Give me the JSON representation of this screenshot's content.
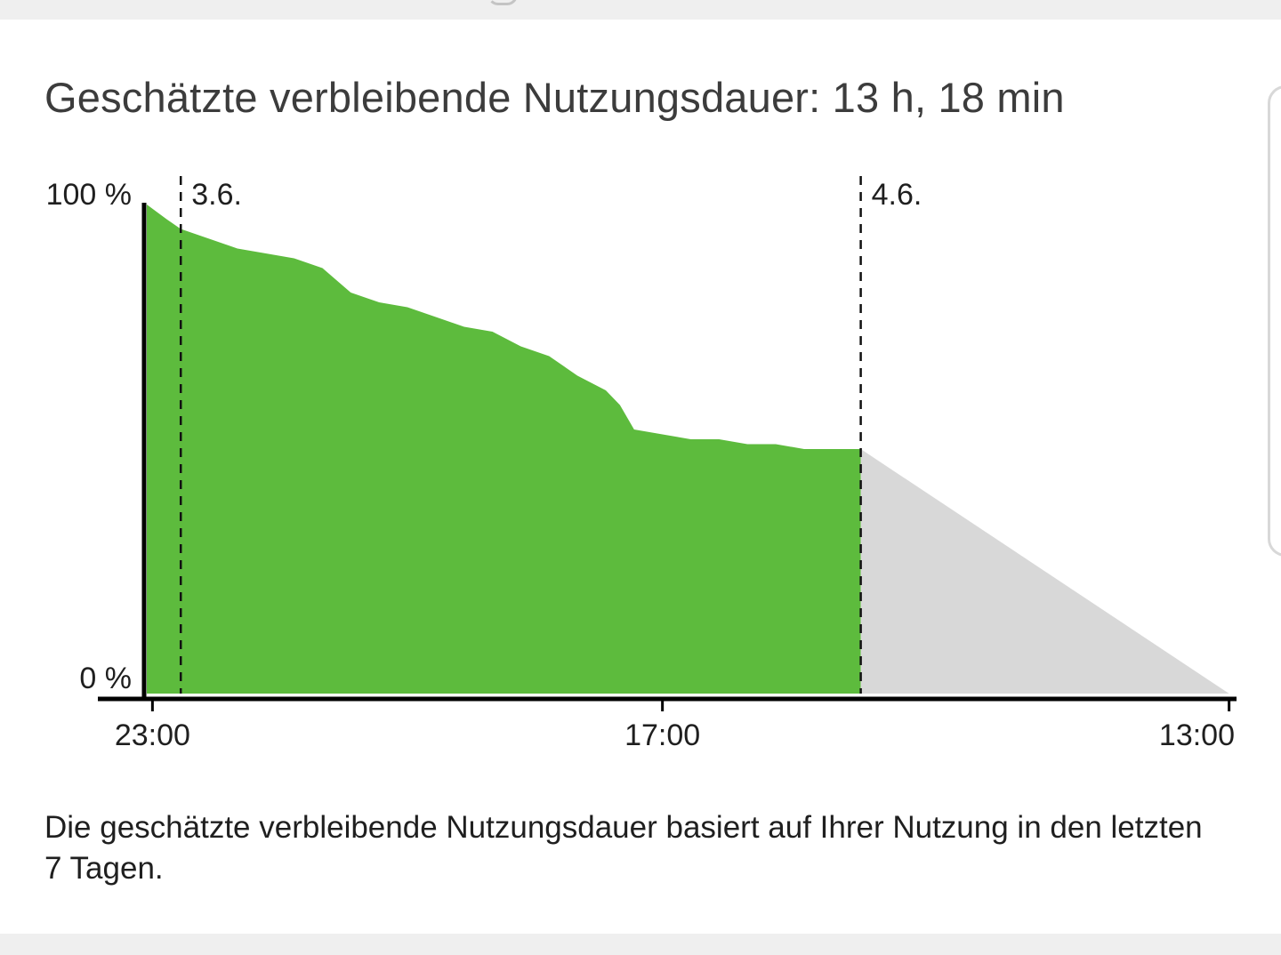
{
  "estimate": {
    "title": "Geschätzte verbleibende Nutzungsdauer: 13 h, 18 min"
  },
  "footnote": "Die geschätzte verbleibende Nutzungsdauer basiert auf Ihrer Nutzung in den letzten 7 Tagen.",
  "colors": {
    "usage_fill": "#5dbb3d",
    "prediction_fill": "#d8d8d8",
    "axis": "#000000",
    "text": "#1f1f1f"
  },
  "chart_data": {
    "type": "area",
    "x_unit": "hours elapsed since 23:00",
    "ylabel": "",
    "xlabel": "",
    "ylim": [
      0,
      100
    ],
    "xlim": [
      -0.2,
      38.2
    ],
    "y_ticks": [
      "0 %",
      "100 %"
    ],
    "x_ticks": [
      {
        "label": "23:00",
        "x": 0
      },
      {
        "label": "17:00",
        "x": 18
      },
      {
        "label": "13:00",
        "x": 38
      }
    ],
    "day_markers": [
      {
        "label": "3.6.",
        "x": 1
      },
      {
        "label": "4.6.",
        "x": 25
      }
    ],
    "series": [
      {
        "kind": "usage",
        "x": [
          -0.2,
          0.5,
          1.0,
          2.0,
          3.0,
          4.0,
          5.0,
          6.0,
          7.0,
          7.5,
          8.0,
          9.0,
          10.0,
          11.0,
          12.0,
          13.0,
          14.0,
          15.0,
          16.0,
          16.5,
          17.0,
          18.0,
          19.0,
          20.0,
          21.0,
          22.0,
          23.0,
          24.0,
          25.0
        ],
        "y": [
          100,
          97,
          95,
          93,
          91,
          90,
          89,
          87,
          82,
          81,
          80,
          79,
          77,
          75,
          74,
          71,
          69,
          65,
          62,
          59,
          54,
          53,
          52,
          52,
          51,
          51,
          50,
          50,
          50
        ]
      },
      {
        "kind": "prediction",
        "x": [
          25,
          38
        ],
        "y": [
          50,
          0
        ]
      }
    ]
  }
}
